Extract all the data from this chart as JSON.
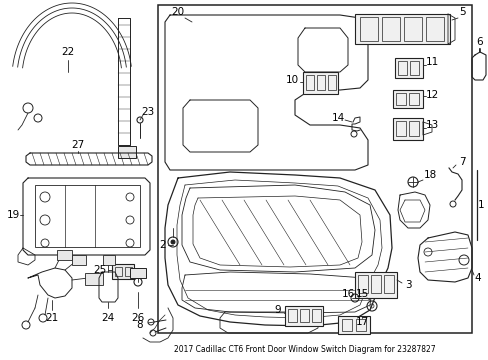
{
  "title": "2017 Cadillac CT6 Front Door Window Switch Diagram for 23287827",
  "bg_color": "#ffffff",
  "line_color": "#222222",
  "fig_width": 4.89,
  "fig_height": 3.6,
  "dpi": 100
}
